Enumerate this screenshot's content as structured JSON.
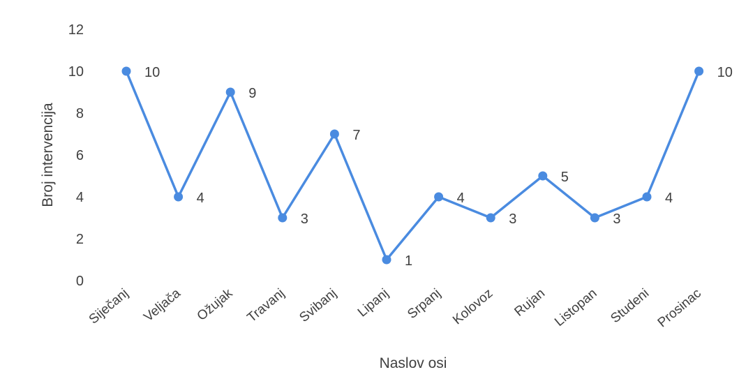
{
  "chart_data": {
    "type": "line",
    "categories": [
      "Siječanj",
      "Veljača",
      "Ožujak",
      "Travanj",
      "Svibanj",
      "Lipanj",
      "Srpanj",
      "Kolovoz",
      "Rujan",
      "Listopan",
      "Studeni",
      "Prosinac"
    ],
    "series": [
      {
        "values": [
          10,
          4,
          9,
          3,
          7,
          1,
          4,
          3,
          5,
          3,
          4,
          10
        ]
      }
    ],
    "xlabel": "Naslov osi",
    "ylabel": "Broj intervencija",
    "ylim": [
      0,
      12
    ],
    "yticks": [
      0,
      2,
      4,
      6,
      8,
      10,
      12
    ],
    "grid": false,
    "legend": "none",
    "data_labels": true,
    "colors": {
      "line": "#4a8be0",
      "marker": "#4a8be0"
    }
  }
}
